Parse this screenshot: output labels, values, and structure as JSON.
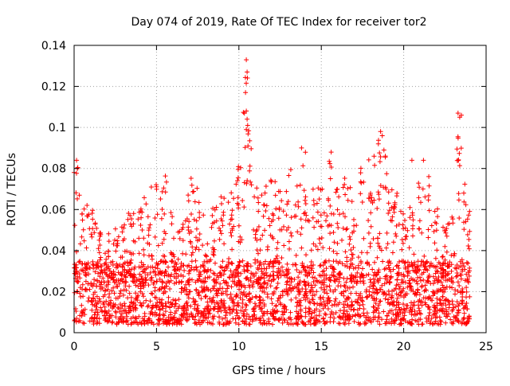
{
  "chart_data": {
    "type": "scatter",
    "title": "Day 074 of 2019, Rate Of TEC Index for receiver tor2",
    "xlabel": "GPS time / hours",
    "ylabel": "ROTI / TECUs",
    "xlim": [
      0,
      25
    ],
    "ylim": [
      0,
      0.14
    ],
    "x_ticks": [
      0,
      5,
      10,
      15,
      20,
      25
    ],
    "x_tick_labels": [
      "0",
      "5",
      "10",
      "15",
      "20",
      "25"
    ],
    "y_ticks": [
      0,
      0.02,
      0.04,
      0.06,
      0.08,
      0.1,
      0.12,
      0.14
    ],
    "y_tick_labels": [
      "0",
      "0.02",
      "0.04",
      "0.06",
      "0.08",
      "0.1",
      "0.12",
      "0.14"
    ],
    "grid": true,
    "marker": "plus",
    "color": "#ff0000",
    "series": [
      {
        "name": "ROTI",
        "x_range_hours": [
          0,
          24
        ],
        "baseline_roti": [
          0.004,
          0.035
        ],
        "envelope_upper": [
          {
            "x": 0.1,
            "y": 0.084
          },
          {
            "x": 0.5,
            "y": 0.06
          },
          {
            "x": 1.0,
            "y": 0.065
          },
          {
            "x": 1.5,
            "y": 0.052
          },
          {
            "x": 2.0,
            "y": 0.049
          },
          {
            "x": 2.5,
            "y": 0.051
          },
          {
            "x": 3.0,
            "y": 0.056
          },
          {
            "x": 3.5,
            "y": 0.06
          },
          {
            "x": 4.0,
            "y": 0.07
          },
          {
            "x": 4.5,
            "y": 0.069
          },
          {
            "x": 5.0,
            "y": 0.075
          },
          {
            "x": 5.5,
            "y": 0.078
          },
          {
            "x": 6.0,
            "y": 0.06
          },
          {
            "x": 6.5,
            "y": 0.052
          },
          {
            "x": 7.0,
            "y": 0.076
          },
          {
            "x": 7.5,
            "y": 0.071
          },
          {
            "x": 8.0,
            "y": 0.052
          },
          {
            "x": 8.5,
            "y": 0.065
          },
          {
            "x": 9.0,
            "y": 0.071
          },
          {
            "x": 9.5,
            "y": 0.072
          },
          {
            "x": 10.0,
            "y": 0.083
          },
          {
            "x": 10.5,
            "y": 0.133
          },
          {
            "x": 11.0,
            "y": 0.075
          },
          {
            "x": 11.5,
            "y": 0.07
          },
          {
            "x": 12.0,
            "y": 0.077
          },
          {
            "x": 12.5,
            "y": 0.074
          },
          {
            "x": 13.0,
            "y": 0.085
          },
          {
            "x": 13.5,
            "y": 0.074
          },
          {
            "x": 14.0,
            "y": 0.089
          },
          {
            "x": 14.5,
            "y": 0.07
          },
          {
            "x": 15.0,
            "y": 0.075
          },
          {
            "x": 15.5,
            "y": 0.089
          },
          {
            "x": 16.0,
            "y": 0.072
          },
          {
            "x": 16.5,
            "y": 0.08
          },
          {
            "x": 17.0,
            "y": 0.065
          },
          {
            "x": 17.5,
            "y": 0.083
          },
          {
            "x": 18.0,
            "y": 0.085
          },
          {
            "x": 18.5,
            "y": 0.098
          },
          {
            "x": 19.0,
            "y": 0.09
          },
          {
            "x": 19.5,
            "y": 0.07
          },
          {
            "x": 20.0,
            "y": 0.068
          },
          {
            "x": 20.5,
            "y": 0.063
          },
          {
            "x": 21.0,
            "y": 0.084
          },
          {
            "x": 21.5,
            "y": 0.084
          },
          {
            "x": 22.0,
            "y": 0.065
          },
          {
            "x": 22.5,
            "y": 0.055
          },
          {
            "x": 23.0,
            "y": 0.066
          },
          {
            "x": 23.4,
            "y": 0.107
          },
          {
            "x": 23.7,
            "y": 0.074
          },
          {
            "x": 24.0,
            "y": 0.06
          }
        ],
        "outliers": [
          {
            "x": 10.45,
            "y": 0.133
          },
          {
            "x": 10.5,
            "y": 0.127
          },
          {
            "x": 10.4,
            "y": 0.117
          },
          {
            "x": 10.45,
            "y": 0.108
          },
          {
            "x": 10.5,
            "y": 0.104
          },
          {
            "x": 10.45,
            "y": 0.099
          },
          {
            "x": 10.55,
            "y": 0.091
          },
          {
            "x": 23.3,
            "y": 0.107
          },
          {
            "x": 23.4,
            "y": 0.105
          },
          {
            "x": 23.5,
            "y": 0.106
          },
          {
            "x": 18.6,
            "y": 0.098
          },
          {
            "x": 18.7,
            "y": 0.096
          },
          {
            "x": 18.8,
            "y": 0.089
          },
          {
            "x": 13.8,
            "y": 0.09
          },
          {
            "x": 15.6,
            "y": 0.088
          },
          {
            "x": 0.15,
            "y": 0.084
          },
          {
            "x": 0.2,
            "y": 0.08
          },
          {
            "x": 20.5,
            "y": 0.084
          },
          {
            "x": 21.2,
            "y": 0.084
          },
          {
            "x": 18.2,
            "y": 0.086
          }
        ]
      }
    ]
  }
}
